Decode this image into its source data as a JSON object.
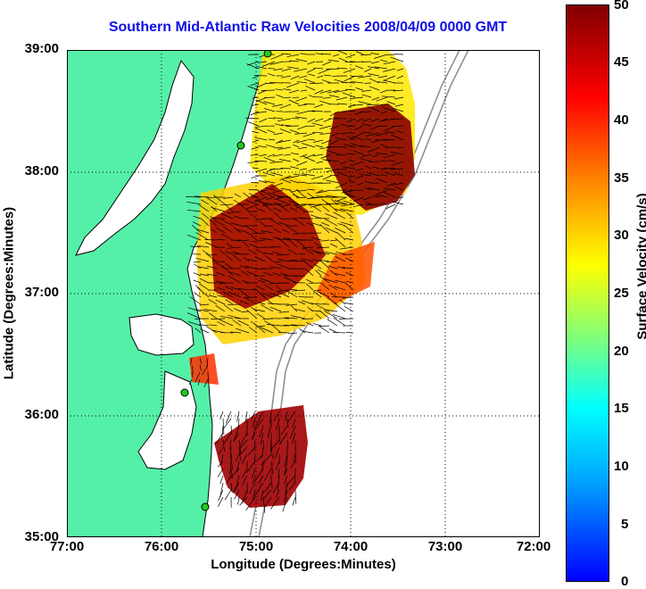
{
  "title": "Southern Mid-Atlantic Raw Velocities 2008/04/09 0000 GMT",
  "xlabel": "Longitude (Degrees:Minutes)",
  "ylabel": "Latitude (Degrees:Minutes)",
  "x_ticks": [
    "77:00",
    "76:00",
    "75:00",
    "74:00",
    "73:00",
    "72:00"
  ],
  "y_ticks": [
    "39:00",
    "38:00",
    "37:00",
    "36:00",
    "35:00"
  ],
  "colorbar": {
    "label": "Surface Velocity (cm/s)",
    "ticks": [
      "50",
      "45",
      "40",
      "35",
      "30",
      "25",
      "20",
      "15",
      "10",
      "5",
      "0"
    ]
  },
  "colors": {
    "land": "#55f0a8",
    "title": "#1010e8",
    "isobath": "#8a8a8a",
    "station": "#22cc22"
  }
}
